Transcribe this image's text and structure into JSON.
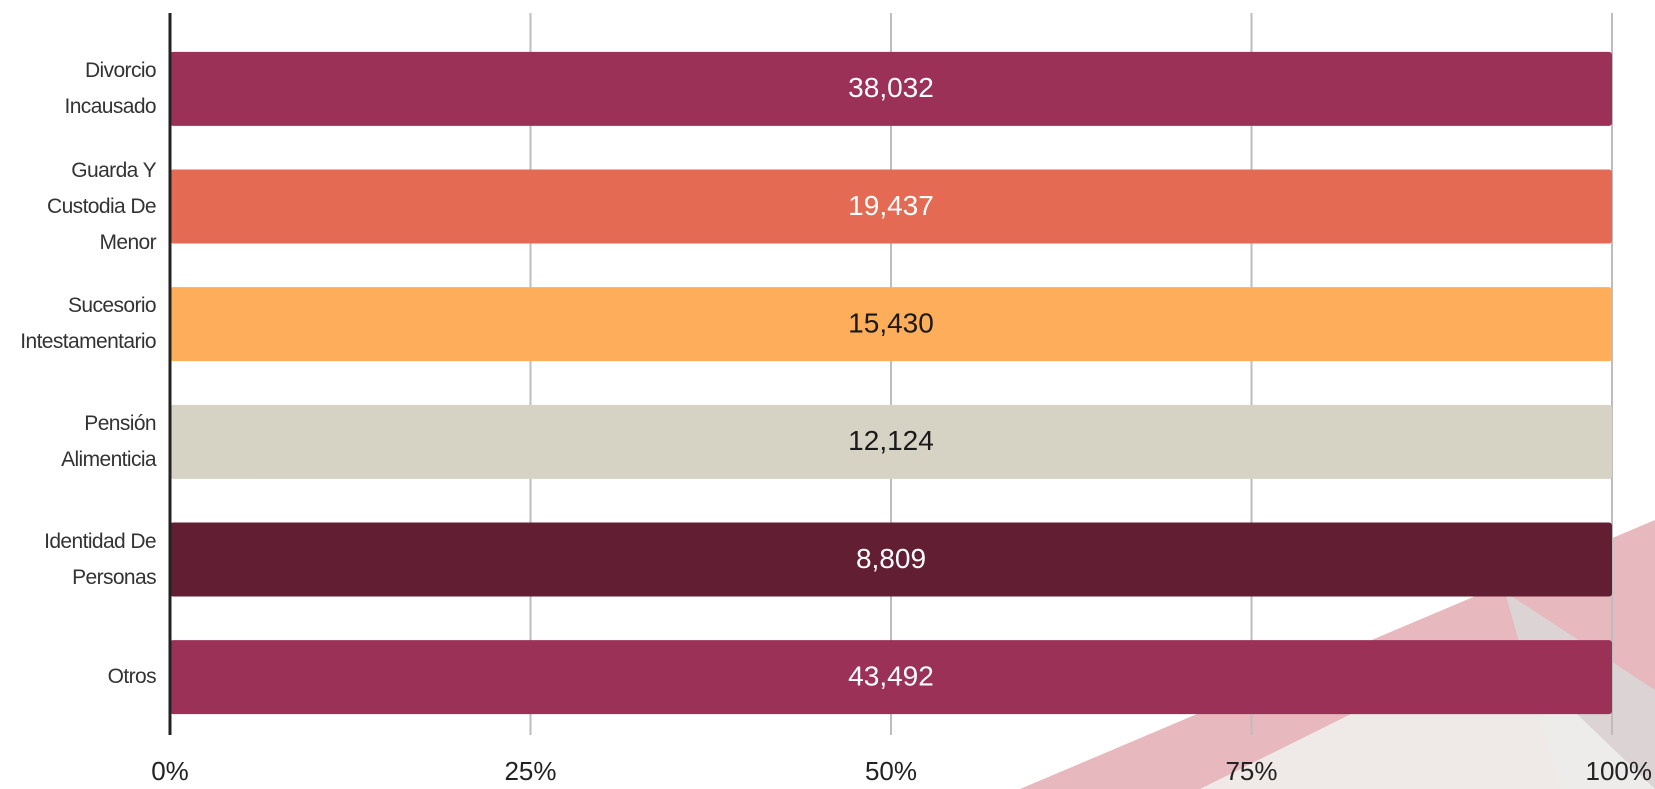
{
  "chart_data": {
    "type": "bar",
    "orientation": "horizontal",
    "stacking": "percent",
    "categories": [
      "Divorcio Incausado",
      "Guarda Y Custodia De Menor",
      "Sucesorio Intestamentario",
      "Pensión Alimenticia",
      "Identidad De Personas",
      "Otros"
    ],
    "series": [
      {
        "values": [
          38032,
          19437,
          15430,
          12124,
          8809,
          43492
        ],
        "value_labels": [
          "38,032",
          "19,437",
          "15,430",
          "12,124",
          "8,809",
          "43,492"
        ],
        "colors": [
          "#9b3157",
          "#e46a54",
          "#feae5a",
          "#d6d2c4",
          "#621e32",
          "#9b3157"
        ]
      }
    ],
    "xlim": [
      0,
      100
    ],
    "xticks": [
      {
        "value": 0,
        "label": "0%"
      },
      {
        "value": 25,
        "label": "25%"
      },
      {
        "value": 50,
        "label": "50%"
      },
      {
        "value": 75,
        "label": "75%"
      },
      {
        "value": 100,
        "label": "100%"
      }
    ],
    "grid": true
  }
}
